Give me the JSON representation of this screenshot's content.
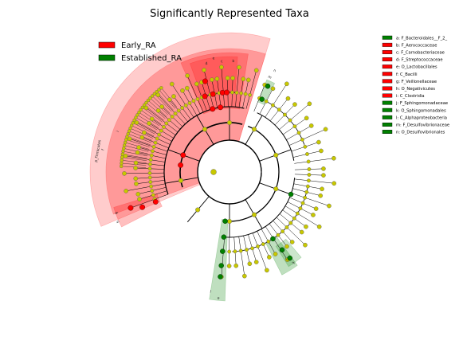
{
  "chart_data": {
    "type": "cladogram",
    "title": "Significantly Represented Taxa",
    "legend_groups": [
      {
        "name": "Early_RA",
        "color": "#ff0000"
      },
      {
        "name": "Established_RA",
        "color": "#008000"
      }
    ],
    "taxa_key": [
      {
        "letter": "a",
        "taxon": "F_Bacteroidales__F_2_",
        "group": "Established_RA"
      },
      {
        "letter": "b",
        "taxon": "F_Aerococcaceae",
        "group": "Early_RA"
      },
      {
        "letter": "c",
        "taxon": "F_Carnobacteriaceae",
        "group": "Early_RA"
      },
      {
        "letter": "d",
        "taxon": "F_Streptococcaceae",
        "group": "Early_RA"
      },
      {
        "letter": "e",
        "taxon": "O_Lactobacillales",
        "group": "Early_RA"
      },
      {
        "letter": "f",
        "taxon": "C_Bacilli",
        "group": "Early_RA"
      },
      {
        "letter": "g",
        "taxon": "F_Veillonellaceae",
        "group": "Early_RA"
      },
      {
        "letter": "h",
        "taxon": "O_Negativicutes",
        "group": "Early_RA"
      },
      {
        "letter": "i",
        "taxon": "C_Clostridia",
        "group": "Early_RA"
      },
      {
        "letter": "j",
        "taxon": "F_Sphingomonadaceae",
        "group": "Established_RA"
      },
      {
        "letter": "k",
        "taxon": "O_Sphingomonadales",
        "group": "Established_RA"
      },
      {
        "letter": "l",
        "taxon": "C_Alphaproteobacteria",
        "group": "Established_RA"
      },
      {
        "letter": "m",
        "taxon": "F_Desulfovibrionaceae",
        "group": "Established_RA"
      },
      {
        "letter": "n",
        "taxon": "O_Desulfovibrionales",
        "group": "Established_RA"
      }
    ],
    "phylum_label": "p_Firmicutes",
    "colors": {
      "nonsignificant": "#c8c800",
      "early": "#ff0000",
      "established": "#008000"
    }
  }
}
